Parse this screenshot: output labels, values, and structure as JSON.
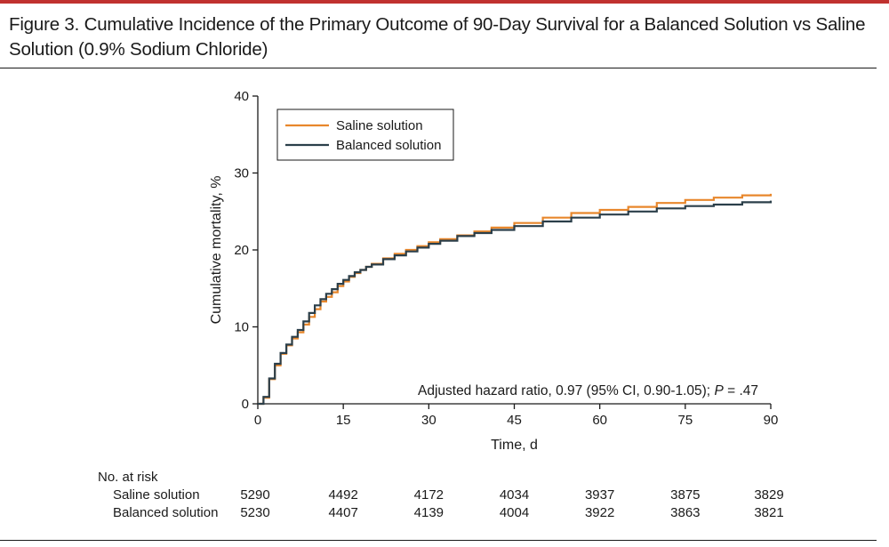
{
  "figure": {
    "title": "Figure 3. Cumulative Incidence of the Primary Outcome of 90-Day Survival for a Balanced Solution vs Saline Solution (0.9% Sodium Chloride)"
  },
  "colors": {
    "accent_rule": "#c0312f",
    "saline": "#e8872c",
    "balanced": "#2b3f4a",
    "axis": "#1a1a1a"
  },
  "chart_data": {
    "type": "line",
    "step": true,
    "xlabel": "Time, d",
    "ylabel": "Cumulative mortality, %",
    "xlim": [
      0,
      90
    ],
    "ylim": [
      0,
      40
    ],
    "xticks": [
      0,
      15,
      30,
      45,
      60,
      75,
      90
    ],
    "yticks": [
      0,
      10,
      20,
      30,
      40
    ],
    "grid": false,
    "legend_position": "top-left",
    "annotation_prefix": "Adjusted hazard ratio, 0.97 (95% CI, 0.90-1.05); ",
    "annotation_italic": "P",
    "annotation_suffix": " = .47",
    "series": [
      {
        "name": "Saline solution",
        "x": [
          0,
          1,
          2,
          3,
          4,
          5,
          6,
          7,
          8,
          9,
          10,
          11,
          12,
          13,
          14,
          15,
          16,
          17,
          18,
          19,
          20,
          22,
          24,
          26,
          28,
          30,
          32,
          35,
          38,
          41,
          45,
          50,
          55,
          60,
          65,
          70,
          75,
          80,
          85,
          90
        ],
        "y": [
          0,
          0.8,
          3.2,
          5.0,
          6.5,
          7.6,
          8.5,
          9.3,
          10.3,
          11.3,
          12.3,
          13.3,
          13.9,
          14.5,
          15.3,
          15.9,
          16.5,
          17.0,
          17.4,
          17.8,
          18.2,
          18.9,
          19.5,
          20.0,
          20.5,
          21.0,
          21.4,
          21.9,
          22.4,
          22.9,
          23.5,
          24.2,
          24.8,
          25.2,
          25.6,
          26.1,
          26.5,
          26.8,
          27.1,
          27.3
        ]
      },
      {
        "name": "Balanced solution",
        "x": [
          0,
          1,
          2,
          3,
          4,
          5,
          6,
          7,
          8,
          9,
          10,
          11,
          12,
          13,
          14,
          15,
          16,
          17,
          18,
          19,
          20,
          22,
          24,
          26,
          28,
          30,
          32,
          35,
          38,
          41,
          45,
          50,
          55,
          60,
          65,
          70,
          75,
          80,
          85,
          90
        ],
        "y": [
          0,
          0.9,
          3.3,
          5.2,
          6.6,
          7.7,
          8.7,
          9.6,
          10.7,
          11.8,
          12.8,
          13.6,
          14.3,
          14.9,
          15.6,
          16.1,
          16.6,
          17.1,
          17.4,
          17.8,
          18.1,
          18.8,
          19.3,
          19.8,
          20.3,
          20.8,
          21.2,
          21.8,
          22.2,
          22.6,
          23.1,
          23.7,
          24.2,
          24.6,
          25.0,
          25.4,
          25.7,
          25.9,
          26.2,
          26.4
        ]
      }
    ],
    "at_risk": {
      "heading": "No. at risk",
      "rows": [
        {
          "label": "Saline solution",
          "values": [
            "5290",
            "4492",
            "4172",
            "4034",
            "3937",
            "3875",
            "3829"
          ]
        },
        {
          "label": "Balanced solution",
          "values": [
            "5230",
            "4407",
            "4139",
            "4004",
            "3922",
            "3863",
            "3821"
          ]
        }
      ]
    }
  }
}
